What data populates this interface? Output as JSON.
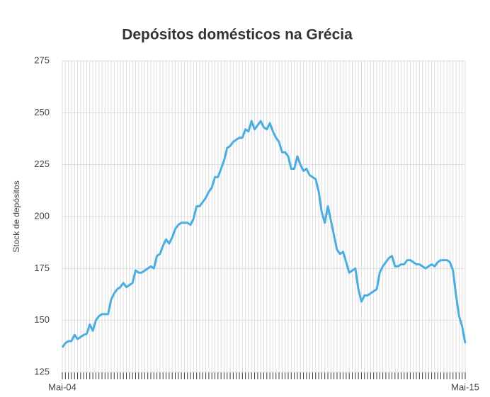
{
  "chart_data": {
    "type": "line",
    "title": "Depósitos domésticos na Grécia",
    "ylabel": "Stock de depósitos",
    "categories": [
      "Mai-04",
      null,
      null,
      null,
      null,
      null,
      null,
      null,
      null,
      null,
      null,
      null,
      null,
      null,
      null,
      null,
      null,
      null,
      null,
      null,
      null,
      null,
      null,
      null,
      null,
      null,
      null,
      null,
      null,
      null,
      null,
      null,
      null,
      null,
      null,
      null,
      null,
      null,
      null,
      null,
      null,
      null,
      null,
      null,
      null,
      null,
      null,
      null,
      null,
      null,
      null,
      null,
      null,
      null,
      null,
      null,
      null,
      null,
      null,
      null,
      null,
      null,
      null,
      null,
      null,
      null,
      null,
      null,
      null,
      null,
      null,
      null,
      null,
      null,
      null,
      null,
      null,
      null,
      null,
      null,
      null,
      null,
      null,
      null,
      null,
      null,
      null,
      null,
      null,
      null,
      null,
      null,
      null,
      null,
      null,
      null,
      null,
      null,
      null,
      null,
      null,
      null,
      null,
      null,
      null,
      null,
      null,
      null,
      null,
      null,
      null,
      null,
      null,
      null,
      null,
      null,
      null,
      null,
      null,
      null,
      null,
      null,
      null,
      null,
      null,
      null,
      null,
      null,
      null,
      null,
      null,
      null,
      "Mai-15"
    ],
    "series": [
      {
        "name": "Stock de depósitos",
        "color": "#4aaee0",
        "values": [
          137,
          139,
          140,
          140,
          143,
          141,
          142,
          143,
          143.5,
          148,
          145,
          150,
          152,
          153,
          153,
          153,
          160,
          163,
          165,
          166,
          168,
          166,
          167,
          168,
          174,
          173,
          173,
          174,
          175,
          176,
          175,
          181,
          182,
          186,
          189,
          187,
          190,
          194,
          196,
          197,
          197,
          197,
          196,
          199,
          205,
          205,
          207,
          209,
          212,
          214,
          219,
          219,
          223,
          227,
          233,
          234,
          236,
          237,
          238,
          238,
          242,
          241,
          246,
          242,
          244,
          246,
          243,
          242,
          245,
          241,
          238,
          236,
          231,
          231,
          229,
          223,
          223,
          229,
          225,
          222,
          223,
          220,
          219,
          218,
          212,
          202,
          197,
          205,
          198,
          191,
          184,
          182,
          183,
          178,
          173,
          174,
          175,
          165,
          159,
          162,
          162,
          163,
          164,
          165,
          173,
          176,
          178,
          180,
          181,
          176,
          176,
          177,
          177,
          179,
          179,
          178,
          177,
          177,
          176,
          175,
          176,
          177,
          176,
          178,
          179,
          179,
          179,
          178,
          174,
          162,
          152,
          147,
          139
        ]
      }
    ],
    "ylim": [
      125,
      275
    ],
    "yticks": [
      125,
      150,
      175,
      200,
      225,
      250,
      275
    ],
    "grid": true
  }
}
